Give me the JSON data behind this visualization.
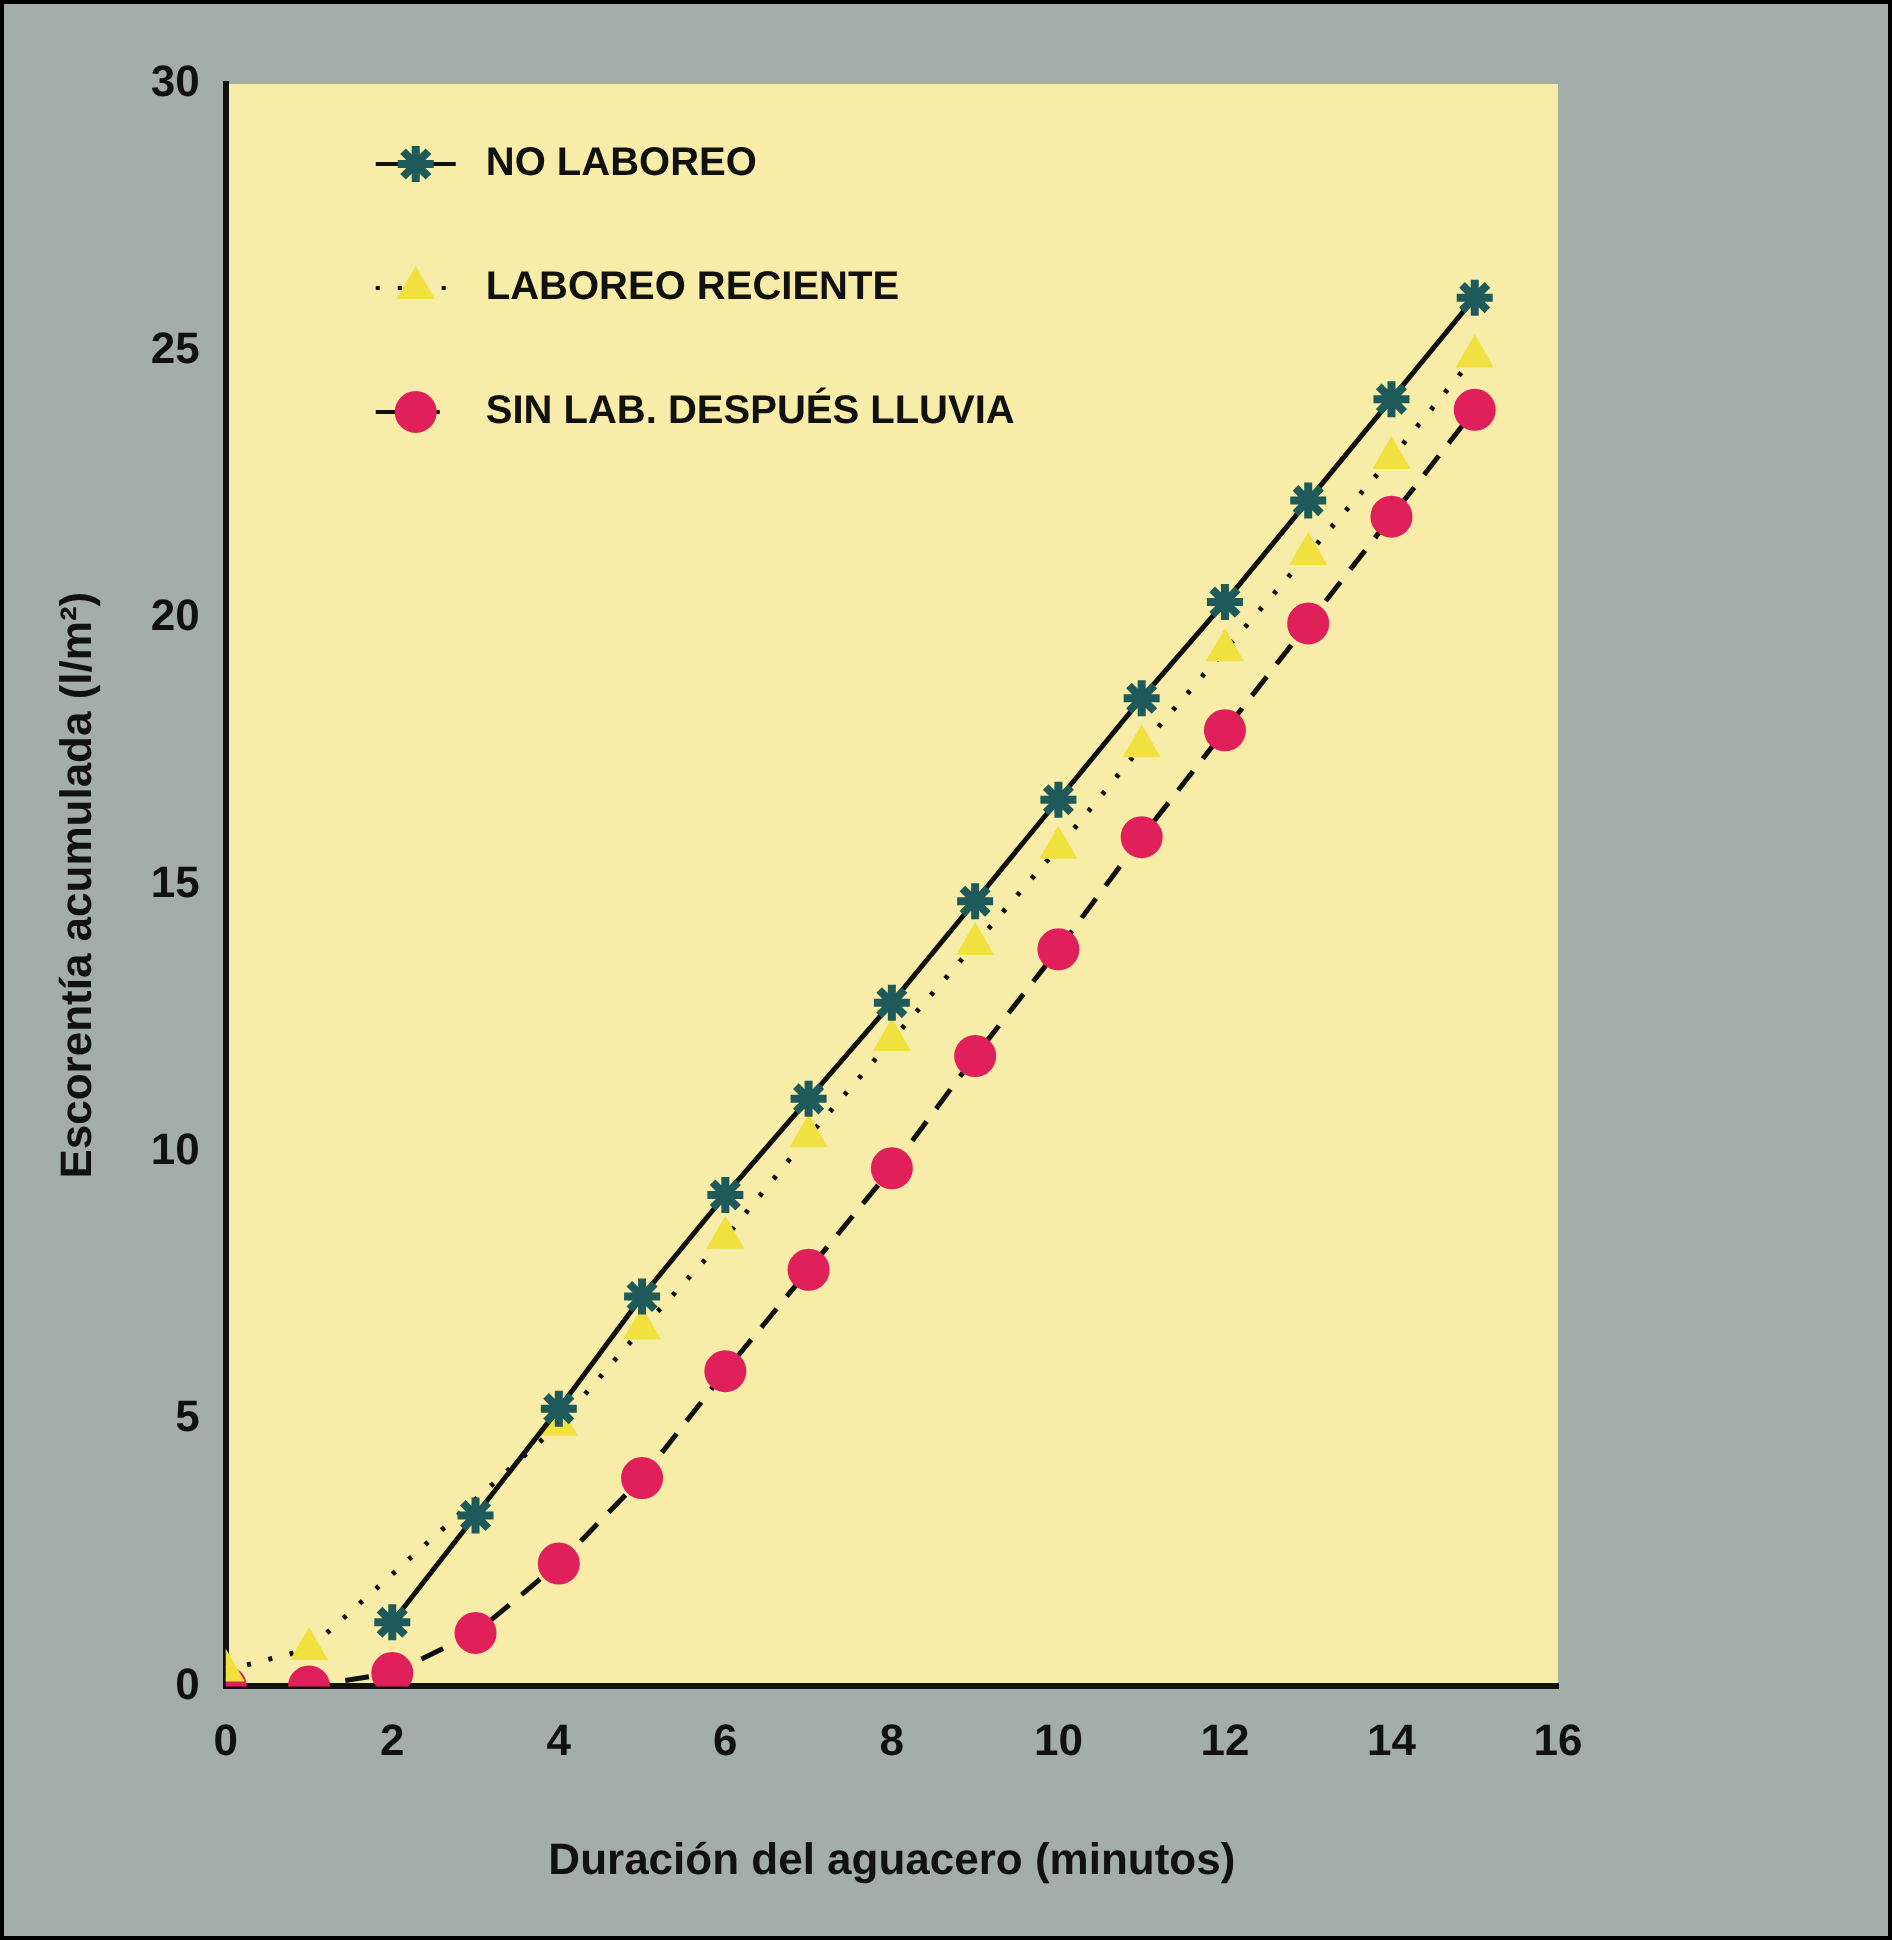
{
  "chart_data": {
    "type": "line",
    "xlabel": "Duración del aguacero (minutos)",
    "ylabel": "Escorentía acumulada (l/m²)",
    "xlim": [
      0,
      16
    ],
    "xticks": [
      0,
      2,
      4,
      6,
      8,
      10,
      12,
      14,
      16
    ],
    "ylim": [
      0,
      30
    ],
    "yticks": [
      0,
      5,
      10,
      15,
      20,
      25,
      30
    ],
    "grid": false,
    "legend": "top left",
    "series": [
      {
        "name": "NO LABOREO",
        "color": "#1f5a5a",
        "marker": "cross",
        "line_style": "solid",
        "x": [
          2,
          3,
          4,
          5,
          6,
          7,
          8,
          9,
          10,
          11,
          12,
          13,
          14,
          15
        ],
        "values": [
          1.2,
          3.2,
          5.2,
          7.3,
          9.2,
          11.0,
          12.8,
          14.7,
          16.6,
          18.5,
          20.3,
          22.2,
          24.1,
          26.0
        ]
      },
      {
        "name": "LABOREO RECIENTE",
        "color": "#f0e040",
        "marker": "triangle",
        "line_style": "dotted",
        "x": [
          0,
          1,
          2,
          3,
          4,
          5,
          6,
          7,
          8,
          9,
          10,
          11,
          12,
          13,
          14,
          15
        ],
        "values": [
          0.3,
          0.7,
          null,
          null,
          4.9,
          6.7,
          8.4,
          10.3,
          12.1,
          13.9,
          15.7,
          17.6,
          19.4,
          21.2,
          23.0,
          24.9
        ]
      },
      {
        "name": "SIN LAB. DESPUÉS LLUVIA",
        "color": "#e0205a",
        "marker": "circle",
        "line_style": "dashed",
        "x": [
          0,
          1,
          2,
          3,
          4,
          5,
          6,
          7,
          8,
          9,
          10,
          11,
          12,
          13,
          14,
          15
        ],
        "values": [
          0,
          0,
          0.25,
          1.0,
          2.3,
          3.9,
          5.9,
          7.8,
          9.7,
          11.8,
          13.8,
          15.9,
          17.9,
          19.9,
          21.9,
          23.9
        ]
      }
    ]
  }
}
